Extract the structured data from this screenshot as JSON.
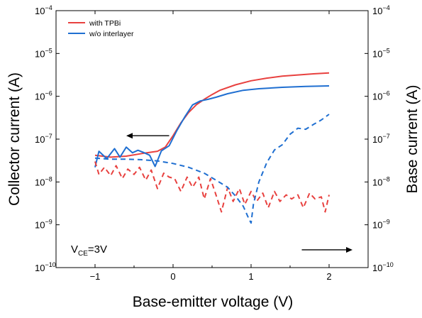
{
  "chart_data": {
    "type": "line",
    "xlabel": "Base-emitter voltage (V)",
    "ylabel_left": "Collector current (A)",
    "ylabel_right": "Base current (A)",
    "xlim": [
      -1.5,
      2.5
    ],
    "ylim": [
      1e-10,
      0.0001
    ],
    "yscale": "log",
    "x_ticks": [
      {
        "value": -1,
        "label": "−1"
      },
      {
        "value": 0,
        "label": "0"
      },
      {
        "value": 1,
        "label": "1"
      },
      {
        "value": 2,
        "label": "2"
      }
    ],
    "y_ticks": [
      {
        "exp": -10,
        "base": "10",
        "sup": "−10"
      },
      {
        "exp": -9,
        "base": "10",
        "sup": "−9"
      },
      {
        "exp": -8,
        "base": "10",
        "sup": "−8"
      },
      {
        "exp": -7,
        "base": "10",
        "sup": "−7"
      },
      {
        "exp": -6,
        "base": "10",
        "sup": "−6"
      },
      {
        "exp": -5,
        "base": "10",
        "sup": "−5"
      },
      {
        "exp": -4,
        "base": "10",
        "sup": "−4"
      }
    ],
    "legend_position": "top-left",
    "series": [
      {
        "name": "with TPBi",
        "color": "#e8413f",
        "style": "solid",
        "axis": "left",
        "points": [
          [
            -1.0,
            4.2e-08
          ],
          [
            -0.8,
            3.8e-08
          ],
          [
            -0.6,
            4e-08
          ],
          [
            -0.4,
            4.6e-08
          ],
          [
            -0.2,
            5.2e-08
          ],
          [
            -0.1,
            6.5e-08
          ],
          [
            0.0,
            1.2e-07
          ],
          [
            0.1,
            2.4e-07
          ],
          [
            0.2,
            4.2e-07
          ],
          [
            0.3,
            6.4e-07
          ],
          [
            0.4,
            8.5e-07
          ],
          [
            0.5,
            1.1e-06
          ],
          [
            0.6,
            1.38e-06
          ],
          [
            0.8,
            1.85e-06
          ],
          [
            1.0,
            2.3e-06
          ],
          [
            1.2,
            2.65e-06
          ],
          [
            1.4,
            2.95e-06
          ],
          [
            1.6,
            3.15e-06
          ],
          [
            1.8,
            3.35e-06
          ],
          [
            2.0,
            3.5e-06
          ]
        ]
      },
      {
        "name": "w/o interlayer",
        "color": "#1f6fd1",
        "style": "solid",
        "axis": "left",
        "points": [
          [
            -1.0,
            2.2e-08
          ],
          [
            -0.95,
            5.2e-08
          ],
          [
            -0.85,
            3.5e-08
          ],
          [
            -0.75,
            6e-08
          ],
          [
            -0.68,
            3.8e-08
          ],
          [
            -0.6,
            6.5e-08
          ],
          [
            -0.52,
            4.8e-08
          ],
          [
            -0.45,
            5.5e-08
          ],
          [
            -0.38,
            4.9e-08
          ],
          [
            -0.3,
            4.2e-08
          ],
          [
            -0.23,
            2.3e-08
          ],
          [
            -0.15,
            5.3e-08
          ],
          [
            -0.05,
            7e-08
          ],
          [
            0.05,
            1.6e-07
          ],
          [
            0.15,
            3.3e-07
          ],
          [
            0.25,
            6.3e-07
          ],
          [
            0.35,
            7.8e-07
          ],
          [
            0.45,
            8.5e-07
          ],
          [
            0.55,
            9.5e-07
          ],
          [
            0.7,
            1.15e-06
          ],
          [
            0.9,
            1.38e-06
          ],
          [
            1.1,
            1.5e-06
          ],
          [
            1.4,
            1.62e-06
          ],
          [
            1.7,
            1.7e-06
          ],
          [
            2.0,
            1.75e-06
          ]
        ]
      },
      {
        "name": "",
        "color": "#e8413f",
        "style": "dashed",
        "axis": "right",
        "points": [
          [
            -1.0,
            3e-08
          ],
          [
            -0.95,
            1.5e-08
          ],
          [
            -0.88,
            2.2e-08
          ],
          [
            -0.8,
            1.4e-08
          ],
          [
            -0.73,
            2.4e-08
          ],
          [
            -0.65,
            1.2e-08
          ],
          [
            -0.58,
            2e-08
          ],
          [
            -0.5,
            1.5e-08
          ],
          [
            -0.43,
            2.2e-08
          ],
          [
            -0.35,
            1.1e-08
          ],
          [
            -0.28,
            1.9e-08
          ],
          [
            -0.2,
            7e-09
          ],
          [
            -0.12,
            1.6e-08
          ],
          [
            -0.05,
            1.3e-08
          ],
          [
            0.02,
            1.2e-08
          ],
          [
            0.1,
            6e-09
          ],
          [
            0.18,
            1.3e-08
          ],
          [
            0.25,
            7.5e-09
          ],
          [
            0.33,
            1.3e-08
          ],
          [
            0.4,
            4e-09
          ],
          [
            0.48,
            1.2e-08
          ],
          [
            0.55,
            5e-09
          ],
          [
            0.62,
            2e-09
          ],
          [
            0.7,
            7.5e-09
          ],
          [
            0.77,
            3.5e-09
          ],
          [
            0.85,
            7e-09
          ],
          [
            0.92,
            3e-09
          ],
          [
            1.0,
            6e-09
          ],
          [
            1.07,
            3.5e-09
          ],
          [
            1.15,
            5.5e-09
          ],
          [
            1.22,
            2.5e-09
          ],
          [
            1.3,
            6e-09
          ],
          [
            1.37,
            3.5e-09
          ],
          [
            1.45,
            5e-09
          ],
          [
            1.52,
            4e-09
          ],
          [
            1.6,
            5e-09
          ],
          [
            1.67,
            2.5e-09
          ],
          [
            1.75,
            5.5e-09
          ],
          [
            1.82,
            4e-09
          ],
          [
            1.9,
            4.5e-09
          ],
          [
            1.95,
            2e-09
          ],
          [
            2.0,
            5e-09
          ]
        ]
      },
      {
        "name": "",
        "color": "#1f6fd1",
        "style": "dashed",
        "axis": "right",
        "points": [
          [
            -1.0,
            3.6e-08
          ],
          [
            -0.8,
            3.4e-08
          ],
          [
            -0.6,
            3.4e-08
          ],
          [
            -0.4,
            3.3e-08
          ],
          [
            -0.2,
            3.1e-08
          ],
          [
            0.0,
            2.7e-08
          ],
          [
            0.2,
            2.2e-08
          ],
          [
            0.4,
            1.6e-08
          ],
          [
            0.55,
            1.1e-08
          ],
          [
            0.7,
            7.5e-09
          ],
          [
            0.8,
            4.7e-09
          ],
          [
            0.9,
            2.7e-09
          ],
          [
            0.97,
            1.4e-09
          ],
          [
            1.0,
            1.1e-09
          ],
          [
            1.03,
            3e-09
          ],
          [
            1.1,
            1e-08
          ],
          [
            1.2,
            2.8e-08
          ],
          [
            1.3,
            5.6e-08
          ],
          [
            1.4,
            7.4e-08
          ],
          [
            1.5,
            1.3e-07
          ],
          [
            1.6,
            1.8e-07
          ],
          [
            1.7,
            1.7e-07
          ],
          [
            1.8,
            2.2e-07
          ],
          [
            1.9,
            2.8e-07
          ],
          [
            2.0,
            3.8e-07
          ]
        ]
      }
    ],
    "annotations": {
      "vce_label": {
        "main": "V",
        "sub": "CE",
        "rest": "=3V"
      },
      "arrow_left": {
        "x_from": -0.05,
        "x_to": -0.6,
        "y": 1.2e-07
      },
      "arrow_right": {
        "x_from": 1.65,
        "x_to": 2.3,
        "y": 2.6e-10
      }
    }
  }
}
